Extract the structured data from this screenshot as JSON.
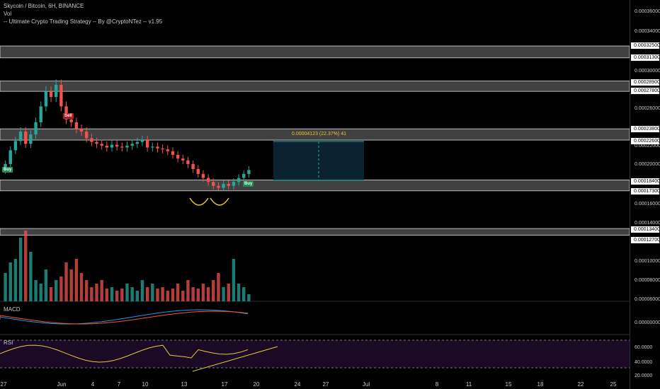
{
  "header": {
    "symbol_line": "Skycoin / Bitcoin, 6H, BINANCE",
    "volume_label": "Vol",
    "strategy_label": "-- Ultimate Crypto Trading Strategy -- By @CryptoNTez -- v1.95"
  },
  "panes": {
    "macd_label": "MACD",
    "rsi_label": "RSI"
  },
  "signals": {
    "buy1": "Buy",
    "sell1": "Sell",
    "buy2": "Buy"
  },
  "measure_label": "0.00004123 (22.37%) 41",
  "price_axis": {
    "ticks": [
      "0.00036000",
      "0.00034000",
      "0.00030000",
      "0.00026000",
      "0.00022000",
      "0.00020000",
      "0.00016000",
      "0.00014000",
      "0.00012000",
      "0.00010000",
      "0.00008000",
      "0.00006000"
    ],
    "boxes": [
      "0.00032500",
      "0.00031300",
      "0.00028900",
      "0.00027800",
      "0.00023800",
      "0.00022600",
      "0.00018400",
      "0.00017300",
      "0.00013400",
      "0.00012700"
    ],
    "macd_tick": "0.00000000",
    "rsi_ticks": [
      "60.0000",
      "40.0000",
      "20.0000"
    ]
  },
  "time_axis": [
    "27",
    "Jun",
    "4",
    "7",
    "10",
    "13",
    "17",
    "20",
    "24",
    "27",
    "Jul",
    "8",
    "11",
    "15",
    "18",
    "22",
    "25"
  ],
  "colors": {
    "up": "#26a69a",
    "down": "#ef5350",
    "zone": "#9e9e9e",
    "trend": "#e5c839",
    "rsi_bg": "#1b0a26",
    "macd": "#2196f3",
    "signal": "#ff5722"
  },
  "chart_data": {
    "type": "candlestick",
    "support_resistance_zones": [
      [
        0.000313,
        0.000325
      ],
      [
        0.000278,
        0.000289
      ],
      [
        0.000226,
        0.000238
      ],
      [
        0.000173,
        0.000184
      ],
      [
        0.000127,
        0.000134
      ]
    ],
    "measure": {
      "change": "0.00004123",
      "percent": "22.37%",
      "bars": 41
    },
    "close_series": [
      0.0002,
      0.000215,
      0.000225,
      0.000235,
      0.000222,
      0.000232,
      0.000245,
      0.000262,
      0.000278,
      0.000272,
      0.000285,
      0.000262,
      0.000248,
      0.000245,
      0.000238,
      0.000235,
      0.000228,
      0.000224,
      0.000222,
      0.00022,
      0.000218,
      0.000221,
      0.000219,
      0.000218,
      0.00022,
      0.000222,
      0.000224,
      0.000226,
      0.000218,
      0.000219,
      0.000217,
      0.000216,
      0.000214,
      0.00021,
      0.000206,
      0.000204,
      0.0002,
      0.000195,
      0.00019,
      0.000186,
      0.000182,
      0.000178,
      0.000176,
      0.00018,
      0.000178,
      0.000182,
      0.000186,
      0.00019,
      0.000194
    ]
  }
}
